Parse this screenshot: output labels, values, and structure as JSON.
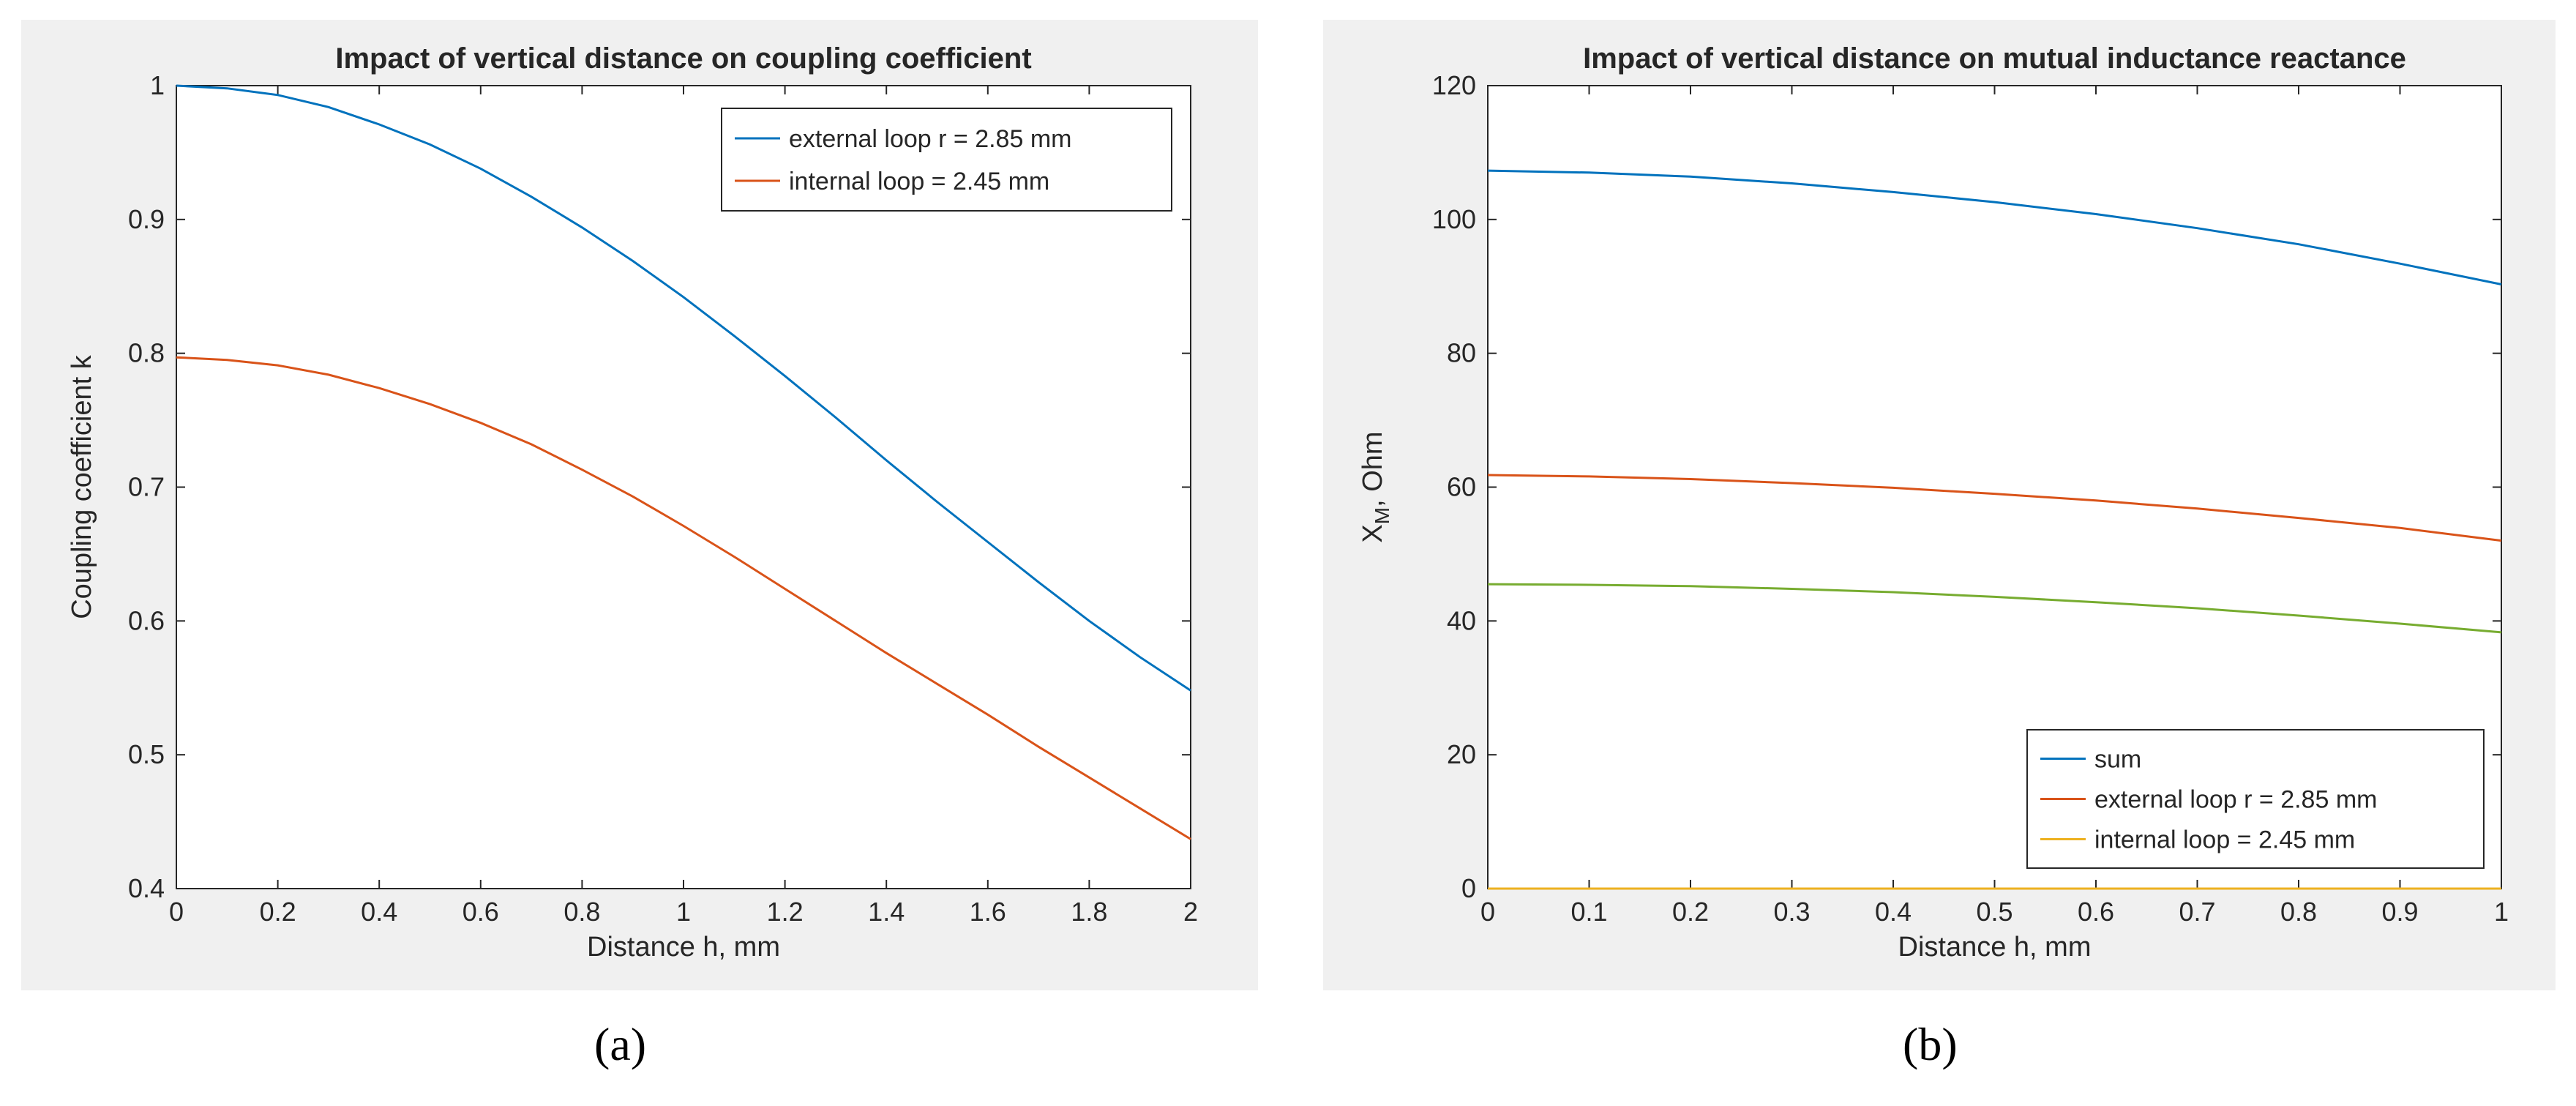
{
  "figures": [
    {
      "caption": "(a)",
      "chart_data": {
        "type": "line",
        "title": "Impact of vertical distance on coupling coefficient",
        "xlabel": "Distance h, mm",
        "ylabel": "Coupling coefficient k",
        "xlim": [
          0,
          2
        ],
        "ylim": [
          0.4,
          1
        ],
        "xticks": [
          0,
          0.2,
          0.4,
          0.6,
          0.8,
          1,
          1.2,
          1.4,
          1.6,
          1.8,
          2
        ],
        "xtick_labels": [
          "0",
          "0.2",
          "0.4",
          "0.6",
          "0.8",
          "1",
          "1.2",
          "1.4",
          "1.6",
          "1.8",
          "2"
        ],
        "yticks": [
          0.4,
          0.5,
          0.6,
          0.7,
          0.8,
          0.9,
          1
        ],
        "ytick_labels": [
          "0.4",
          "0.5",
          "0.6",
          "0.7",
          "0.8",
          "0.9",
          "1"
        ],
        "grid": false,
        "legend_position": "top-right",
        "x": [
          0,
          0.1,
          0.2,
          0.3,
          0.4,
          0.5,
          0.6,
          0.7,
          0.8,
          0.9,
          1.0,
          1.1,
          1.2,
          1.3,
          1.4,
          1.5,
          1.6,
          1.7,
          1.8,
          1.9,
          2.0
        ],
        "series": [
          {
            "name": "external loop r = 2.85 mm",
            "color": "#0072BD",
            "values": [
              1.0,
              0.998,
              0.993,
              0.984,
              0.971,
              0.956,
              0.938,
              0.917,
              0.894,
              0.869,
              0.842,
              0.813,
              0.783,
              0.752,
              0.72,
              0.689,
              0.659,
              0.629,
              0.6,
              0.573,
              0.548
            ]
          },
          {
            "name": "internal loop = 2.45 mm",
            "color": "#D95319",
            "values": [
              0.797,
              0.795,
              0.791,
              0.784,
              0.774,
              0.762,
              0.748,
              0.732,
              0.713,
              0.693,
              0.671,
              0.648,
              0.624,
              0.6,
              0.576,
              0.553,
              0.53,
              0.506,
              0.483,
              0.46,
              0.437
            ]
          }
        ]
      }
    },
    {
      "caption": "(b)",
      "chart_data": {
        "type": "line",
        "title": "Impact of vertical distance on mutual inductance reactance",
        "xlabel": "Distance h, mm",
        "ylabel_main": "X",
        "ylabel_sub": "M",
        "ylabel_rest": ", Ohm",
        "xlim": [
          0,
          1
        ],
        "ylim": [
          0,
          120
        ],
        "xticks": [
          0,
          0.1,
          0.2,
          0.3,
          0.4,
          0.5,
          0.6,
          0.7,
          0.8,
          0.9,
          1
        ],
        "xtick_labels": [
          "0",
          "0.1",
          "0.2",
          "0.3",
          "0.4",
          "0.5",
          "0.6",
          "0.7",
          "0.8",
          "0.9",
          "1"
        ],
        "yticks": [
          0,
          20,
          40,
          60,
          80,
          100,
          120
        ],
        "ytick_labels": [
          "0",
          "20",
          "40",
          "60",
          "80",
          "100",
          "120"
        ],
        "grid": false,
        "legend_position": "bottom-right",
        "x": [
          0,
          0.1,
          0.2,
          0.3,
          0.4,
          0.5,
          0.6,
          0.7,
          0.8,
          0.9,
          1.0
        ],
        "series": [
          {
            "name": "sum",
            "color": "#0072BD",
            "values": [
              107.3,
              107.0,
              106.4,
              105.4,
              104.1,
              102.6,
              100.8,
              98.7,
              96.3,
              93.4,
              90.3
            ]
          },
          {
            "name": "external loop r = 2.85 mm",
            "color": "#D95319",
            "values": [
              61.8,
              61.6,
              61.2,
              60.6,
              59.9,
              59.0,
              58.0,
              56.8,
              55.4,
              53.9,
              52.0
            ]
          },
          {
            "name": "internal loop = 2.45 mm",
            "color": "#EDB120",
            "values": [
              0,
              0,
              0,
              0,
              0,
              0,
              0,
              0,
              0,
              0,
              0
            ]
          },
          {
            "name": "",
            "color": "#77AC30",
            "values": [
              45.5,
              45.4,
              45.2,
              44.8,
              44.3,
              43.6,
              42.8,
              41.9,
              40.8,
              39.6,
              38.3
            ]
          }
        ]
      }
    }
  ]
}
